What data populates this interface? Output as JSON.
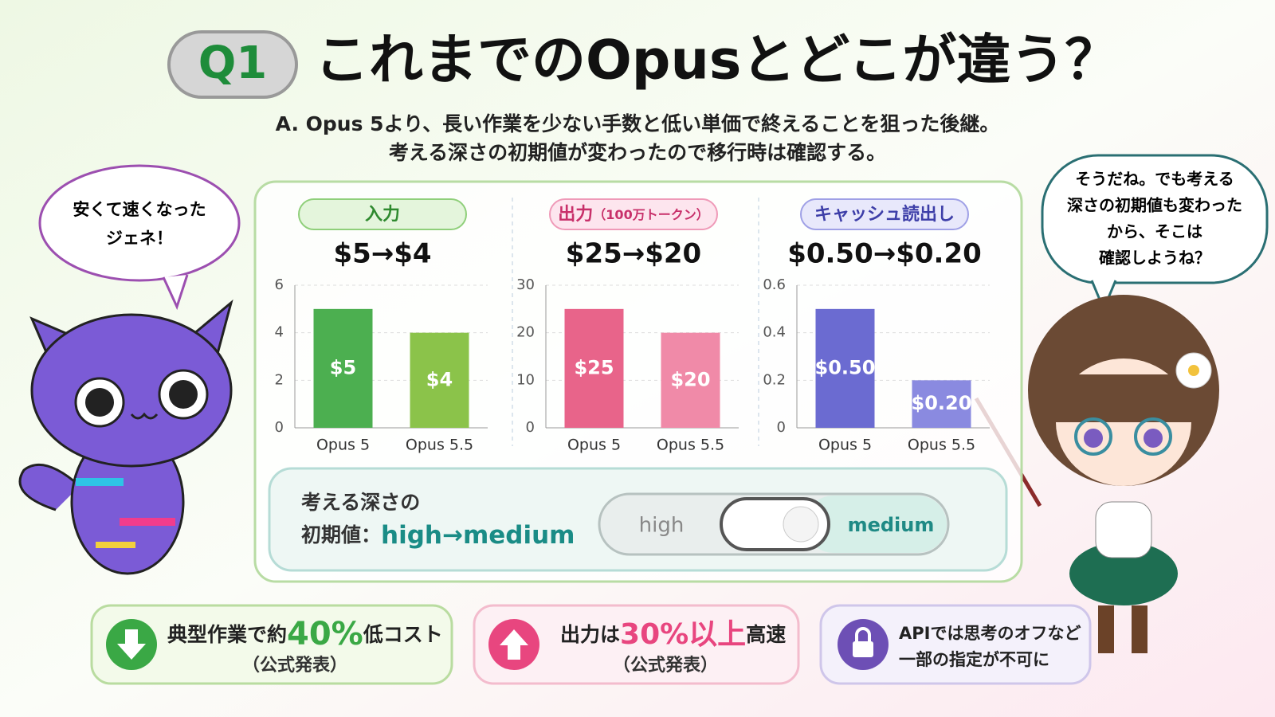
{
  "header": {
    "badge": "Q1",
    "title": "これまでのOpusとどこが違う？",
    "answer_line1": "A. Opus 5より、長い作業を少ない手数と低い単価で終えることを狙った後継。",
    "answer_line2": "考える深さの初期値が変わったので移行時は確認する。"
  },
  "left_bubble": {
    "line1": "安くて速くなった",
    "line2": "ジェネ！"
  },
  "right_bubble": {
    "line1": "そうだね。でも考える",
    "line2": "深さの初期値も変わった",
    "line3": "から、そこは",
    "line4": "確認しようね？"
  },
  "chart_data": [
    {
      "type": "bar",
      "title": "入力",
      "headline": "$5→$4",
      "categories": [
        "Opus 5",
        "Opus 5.5"
      ],
      "values": [
        5,
        4
      ],
      "value_labels": [
        "$5",
        "$4"
      ],
      "colors": [
        "#4caf50",
        "#8bc34a"
      ],
      "ylim": [
        0,
        6
      ],
      "yticks": [
        0,
        2,
        4,
        6
      ],
      "grid": true
    },
    {
      "type": "bar",
      "title": "出力",
      "subtitle": "（100万トークン）",
      "headline": "$25→$20",
      "categories": [
        "Opus 5",
        "Opus 5.5"
      ],
      "values": [
        25,
        20
      ],
      "value_labels": [
        "$25",
        "$20"
      ],
      "colors": [
        "#e8648a",
        "#f08aa8"
      ],
      "ylim": [
        0,
        30
      ],
      "yticks": [
        0,
        10,
        20,
        30
      ],
      "grid": true
    },
    {
      "type": "bar",
      "title": "キャッシュ読出し",
      "headline": "$0.50→$0.20",
      "categories": [
        "Opus 5",
        "Opus 5.5"
      ],
      "values": [
        0.5,
        0.2
      ],
      "value_labels": [
        "$0.50",
        "$0.20"
      ],
      "colors": [
        "#6b6bd1",
        "#8a8ae0"
      ],
      "ylim": [
        0,
        0.6
      ],
      "yticks": [
        0,
        0.2,
        0.4,
        0.6
      ],
      "grid": true
    }
  ],
  "thinking": {
    "label_line1": "考える深さの",
    "label_line2": "初期値：",
    "change": "high→medium",
    "toggle_off": "high",
    "toggle_on": "medium"
  },
  "cards": [
    {
      "pre": "典型作業で約",
      "highlight": "40%",
      "post": "低コスト",
      "note": "（公式発表）"
    },
    {
      "pre": "出力は",
      "highlight": "30%以上",
      "post": "高速",
      "note": "（公式発表）"
    },
    {
      "line1": "APIでは思考のオフなど",
      "line2": "一部の指定が不可に"
    }
  ]
}
